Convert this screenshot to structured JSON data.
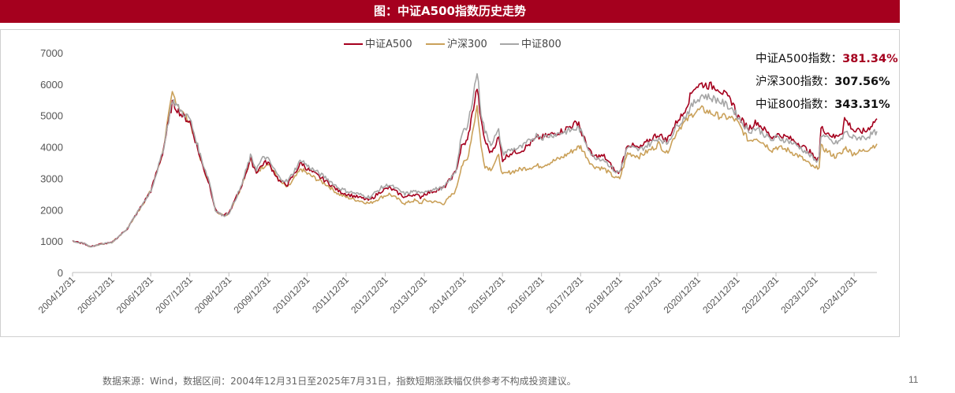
{
  "header": {
    "title": "图：中证A500指数历史走势"
  },
  "annotations": [
    {
      "label": "中证A500指数：",
      "value": "381.34%",
      "color": "#a5001e"
    },
    {
      "label": "沪深300指数：",
      "value": "307.56%",
      "color": "#111111"
    },
    {
      "label": "中证800指数：",
      "value": "343.31%",
      "color": "#111111"
    }
  ],
  "footer": {
    "source": "数据来源：Wind，数据区间：2004年12月31日至2025年7月31日，指数短期涨跌幅仅供参考不构成投资建议。",
    "page": "11"
  },
  "chart_data": {
    "type": "line",
    "title": "",
    "xlabel": "",
    "ylabel": "",
    "ylim": [
      0,
      7000
    ],
    "yticks": [
      0,
      1000,
      2000,
      3000,
      4000,
      5000,
      6000,
      7000
    ],
    "xlim": [
      2004.997,
      2025.58
    ],
    "xticks": [
      "2004/12/31",
      "2005/12/31",
      "2006/12/31",
      "2007/12/31",
      "2008/12/31",
      "2009/12/31",
      "2010/12/31",
      "2011/12/31",
      "2012/12/31",
      "2013/12/31",
      "2014/12/31",
      "2015/12/31",
      "2016/12/31",
      "2017/12/31",
      "2018/12/31",
      "2019/12/31",
      "2020/12/31",
      "2021/12/31",
      "2022/12/31",
      "2023/12/31",
      "2024/12/31"
    ],
    "legend_position": "top-center",
    "grid": false,
    "series": [
      {
        "name": "中证A500",
        "color": "#a5001e",
        "width": 1.6,
        "x": [
          2005.0,
          2005.3,
          2005.45,
          2005.7,
          2006.0,
          2006.4,
          2006.7,
          2007.0,
          2007.3,
          2007.55,
          2007.8,
          2008.0,
          2008.3,
          2008.5,
          2008.65,
          2008.85,
          2009.0,
          2009.3,
          2009.55,
          2009.7,
          2009.9,
          2010.0,
          2010.3,
          2010.5,
          2010.85,
          2011.0,
          2011.5,
          2011.8,
          2012.0,
          2012.3,
          2012.6,
          2012.9,
          2013.1,
          2013.5,
          2013.75,
          2013.9,
          2014.0,
          2014.5,
          2014.8,
          2014.95,
          2015.1,
          2015.35,
          2015.45,
          2015.55,
          2015.7,
          2015.9,
          2016.0,
          2016.2,
          2016.5,
          2016.9,
          2017.0,
          2017.5,
          2017.95,
          2018.0,
          2018.3,
          2018.6,
          2018.9,
          2019.0,
          2019.2,
          2019.5,
          2019.9,
          2020.0,
          2020.2,
          2020.5,
          2020.6,
          2020.9,
          2021.1,
          2021.5,
          2021.9,
          2022.0,
          2022.3,
          2022.5,
          2022.9,
          2023.0,
          2023.3,
          2023.6,
          2023.9,
          2024.0,
          2024.1,
          2024.15,
          2024.5,
          2024.7,
          2024.75,
          2024.95,
          2025.0,
          2025.3,
          2025.58
        ],
        "y": [
          1000,
          920,
          820,
          900,
          950,
          1400,
          2000,
          2600,
          3800,
          5400,
          5000,
          4800,
          3500,
          2800,
          2000,
          1800,
          1900,
          2700,
          3600,
          3200,
          3500,
          3500,
          2900,
          2800,
          3500,
          3300,
          2900,
          2600,
          2500,
          2400,
          2300,
          2600,
          2700,
          2400,
          2500,
          2400,
          2500,
          2700,
          3200,
          4000,
          4200,
          5900,
          4800,
          4200,
          3800,
          4300,
          3600,
          3800,
          3900,
          4300,
          4300,
          4500,
          4800,
          4500,
          3700,
          3700,
          3200,
          3200,
          4100,
          3950,
          4350,
          4400,
          4200,
          4900,
          5000,
          5900,
          6000,
          5900,
          5400,
          5000,
          4600,
          4800,
          4300,
          4400,
          4300,
          4100,
          3800,
          3600,
          3700,
          4600,
          4300,
          4500,
          4900,
          4600,
          4500,
          4500,
          4900
        ]
      },
      {
        "name": "沪深300",
        "color": "#caa15a",
        "width": 1.6,
        "x": [
          2005.0,
          2005.3,
          2005.45,
          2005.7,
          2006.0,
          2006.4,
          2006.7,
          2007.0,
          2007.3,
          2007.55,
          2007.8,
          2008.0,
          2008.3,
          2008.5,
          2008.65,
          2008.85,
          2009.0,
          2009.3,
          2009.55,
          2009.7,
          2009.9,
          2010.0,
          2010.3,
          2010.5,
          2010.85,
          2011.0,
          2011.5,
          2011.8,
          2012.0,
          2012.3,
          2012.6,
          2012.9,
          2013.1,
          2013.5,
          2013.75,
          2013.9,
          2014.0,
          2014.5,
          2014.8,
          2014.95,
          2015.1,
          2015.35,
          2015.45,
          2015.55,
          2015.7,
          2015.9,
          2016.0,
          2016.2,
          2016.5,
          2016.9,
          2017.0,
          2017.5,
          2017.95,
          2018.0,
          2018.3,
          2018.6,
          2018.9,
          2019.0,
          2019.2,
          2019.5,
          2019.9,
          2020.0,
          2020.2,
          2020.5,
          2020.6,
          2020.9,
          2021.1,
          2021.5,
          2021.9,
          2022.0,
          2022.3,
          2022.5,
          2022.9,
          2023.0,
          2023.3,
          2023.6,
          2023.9,
          2024.0,
          2024.1,
          2024.15,
          2024.5,
          2024.7,
          2024.75,
          2024.95,
          2025.0,
          2025.3,
          2025.58
        ],
        "y": [
          1000,
          920,
          820,
          900,
          950,
          1400,
          2000,
          2600,
          3800,
          5700,
          5100,
          4800,
          3500,
          2800,
          2000,
          1800,
          1900,
          2700,
          3600,
          3200,
          3400,
          3500,
          2900,
          2700,
          3300,
          3150,
          2800,
          2500,
          2400,
          2300,
          2200,
          2400,
          2500,
          2200,
          2300,
          2200,
          2300,
          2200,
          2600,
          3400,
          3600,
          5300,
          4000,
          3400,
          3300,
          3700,
          3100,
          3200,
          3300,
          3400,
          3400,
          3650,
          4000,
          4000,
          3400,
          3300,
          3000,
          3000,
          3800,
          3700,
          4000,
          4100,
          3800,
          4600,
          4700,
          5100,
          5200,
          5000,
          4900,
          4800,
          4200,
          4300,
          3900,
          4000,
          3900,
          3700,
          3400,
          3300,
          3400,
          4000,
          3700,
          3800,
          4000,
          3800,
          3800,
          3900,
          4100
        ]
      },
      {
        "name": "中证800",
        "color": "#a6a6a6",
        "width": 1.6,
        "x": [
          2005.0,
          2005.3,
          2005.45,
          2005.7,
          2006.0,
          2006.4,
          2006.7,
          2007.0,
          2007.3,
          2007.55,
          2007.8,
          2008.0,
          2008.3,
          2008.5,
          2008.65,
          2008.85,
          2009.0,
          2009.3,
          2009.55,
          2009.7,
          2009.9,
          2010.0,
          2010.3,
          2010.5,
          2010.85,
          2011.0,
          2011.5,
          2011.8,
          2012.0,
          2012.3,
          2012.6,
          2012.9,
          2013.1,
          2013.5,
          2013.75,
          2013.9,
          2014.0,
          2014.5,
          2014.8,
          2014.95,
          2015.1,
          2015.35,
          2015.45,
          2015.55,
          2015.7,
          2015.9,
          2016.0,
          2016.2,
          2016.5,
          2016.9,
          2017.0,
          2017.5,
          2017.95,
          2018.0,
          2018.3,
          2018.6,
          2018.9,
          2019.0,
          2019.2,
          2019.5,
          2019.9,
          2020.0,
          2020.2,
          2020.5,
          2020.6,
          2020.9,
          2021.1,
          2021.5,
          2021.9,
          2022.0,
          2022.3,
          2022.5,
          2022.9,
          2023.0,
          2023.3,
          2023.6,
          2023.9,
          2024.0,
          2024.1,
          2024.15,
          2024.5,
          2024.7,
          2024.75,
          2024.95,
          2025.0,
          2025.3,
          2025.58
        ],
        "y": [
          1000,
          920,
          820,
          900,
          950,
          1400,
          2000,
          2600,
          3800,
          5500,
          5100,
          4900,
          3600,
          2900,
          2000,
          1800,
          1900,
          2700,
          3700,
          3300,
          3700,
          3600,
          3000,
          2900,
          3600,
          3400,
          3000,
          2700,
          2600,
          2500,
          2400,
          2700,
          2800,
          2500,
          2600,
          2500,
          2600,
          2700,
          3200,
          4400,
          4600,
          6400,
          5100,
          4500,
          4100,
          4500,
          3800,
          3900,
          4000,
          4400,
          4300,
          4450,
          4600,
          4500,
          3700,
          3600,
          3200,
          3200,
          4000,
          3900,
          4200,
          4300,
          4100,
          4750,
          4850,
          5400,
          5650,
          5500,
          5200,
          5000,
          4500,
          4600,
          4200,
          4300,
          4200,
          4000,
          3700,
          3550,
          3650,
          4400,
          4100,
          4250,
          4500,
          4300,
          4300,
          4300,
          4500
        ]
      }
    ]
  }
}
